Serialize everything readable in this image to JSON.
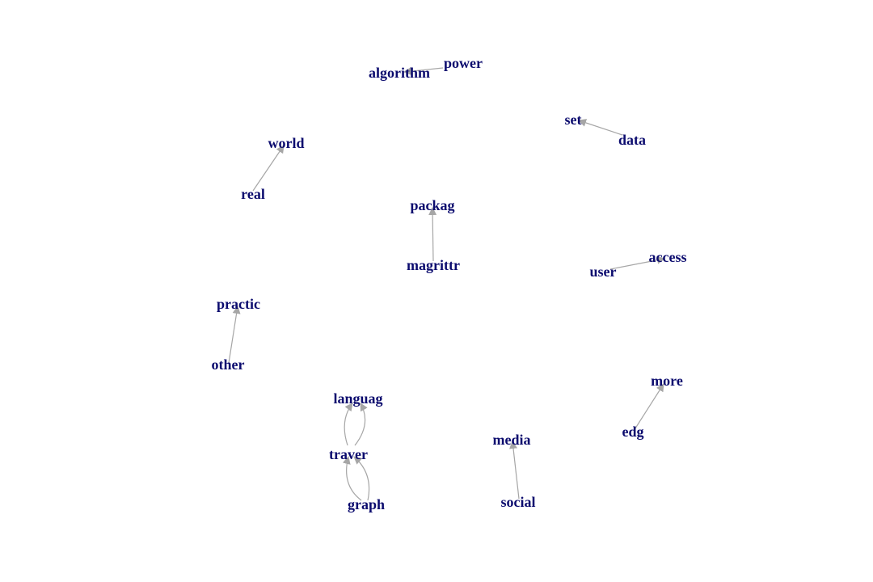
{
  "colors": {
    "node_label": "#0b0b6e",
    "edge": "#a6a6a6"
  },
  "nodes": [
    {
      "id": "algorithm",
      "label": "algorithm"
    },
    {
      "id": "power",
      "label": "power"
    },
    {
      "id": "set",
      "label": "set"
    },
    {
      "id": "data",
      "label": "data"
    },
    {
      "id": "world",
      "label": "world"
    },
    {
      "id": "real",
      "label": "real"
    },
    {
      "id": "packag",
      "label": "packag"
    },
    {
      "id": "magrittr",
      "label": "magrittr"
    },
    {
      "id": "access",
      "label": "access"
    },
    {
      "id": "user",
      "label": "user"
    },
    {
      "id": "practic",
      "label": "practic"
    },
    {
      "id": "other",
      "label": "other"
    },
    {
      "id": "more",
      "label": "more"
    },
    {
      "id": "edg",
      "label": "edg"
    },
    {
      "id": "languag",
      "label": "languag"
    },
    {
      "id": "traver",
      "label": "traver"
    },
    {
      "id": "graph",
      "label": "graph"
    },
    {
      "id": "media",
      "label": "media"
    },
    {
      "id": "social",
      "label": "social"
    }
  ],
  "edges": [
    {
      "from": "power",
      "to": "algorithm"
    },
    {
      "from": "data",
      "to": "set"
    },
    {
      "from": "real",
      "to": "world"
    },
    {
      "from": "magrittr",
      "to": "packag"
    },
    {
      "from": "user",
      "to": "access"
    },
    {
      "from": "other",
      "to": "practic"
    },
    {
      "from": "edg",
      "to": "more"
    },
    {
      "from": "traver",
      "to": "languag"
    },
    {
      "from": "traver",
      "to": "languag"
    },
    {
      "from": "graph",
      "to": "traver"
    },
    {
      "from": "graph",
      "to": "traver"
    },
    {
      "from": "social",
      "to": "media"
    }
  ]
}
